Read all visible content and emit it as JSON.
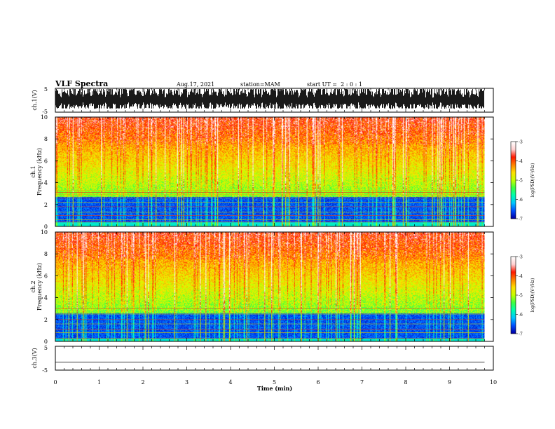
{
  "header": {
    "title": "VLF Spectra",
    "date": "Aug.17, 2021",
    "station": "station=MAM",
    "start_ut": "start UT =  2 : 0 : 1"
  },
  "chart_data": [
    {
      "type": "line",
      "name": "ch1-waveform",
      "ylabel": "ch.1(V)",
      "xlim": [
        0,
        10
      ],
      "ylim": [
        -5,
        5
      ],
      "yticks": [
        "5",
        "-5"
      ],
      "description_of_trace": "dense burst waveform filling about -3.5 to 4.7 V"
    },
    {
      "type": "heatmap",
      "name": "ch1-spectrogram",
      "ylabel": "ch.1\nFrequency (kHz)",
      "xlim": [
        0,
        10
      ],
      "ylim": [
        0,
        10
      ],
      "yticks": [
        "0",
        "2",
        "4",
        "6",
        "8",
        "10"
      ],
      "low_band_khz": [
        0.4,
        2.7
      ],
      "harmonic_lines_khz": [
        0.4,
        0.6,
        1.0,
        1.3,
        1.8,
        2.2,
        2.6,
        2.9,
        3.1,
        3.3
      ],
      "colorbar": {
        "label": "log(PSD)(V²/Hz)",
        "range": [
          -7,
          -3
        ],
        "ticks": [
          "-3",
          "-4",
          "-5",
          "-6",
          "-7"
        ]
      }
    },
    {
      "type": "heatmap",
      "name": "ch2-spectrogram",
      "ylabel": "ch.2\nFrequency (kHz)",
      "xlim": [
        0,
        10
      ],
      "ylim": [
        0,
        10
      ],
      "yticks": [
        "0",
        "2",
        "4",
        "6",
        "8",
        "10"
      ],
      "low_band_khz": [
        0.3,
        2.6
      ],
      "harmonic_lines_khz": [
        0.3,
        0.8,
        1.1,
        1.6,
        2.0,
        2.5,
        3.0
      ],
      "colorbar": {
        "label": "log(PSD)(V²/Hz)",
        "range": [
          -7,
          -3
        ],
        "ticks": [
          "-3",
          "-4",
          "-5",
          "-6",
          "-7"
        ]
      }
    },
    {
      "type": "line",
      "name": "ch3-waveform",
      "ylabel": "ch.3(V)",
      "xlim": [
        0,
        10
      ],
      "ylim": [
        -5,
        5
      ],
      "yticks": [
        "5",
        "-5"
      ],
      "x": [
        0,
        9.8
      ],
      "y": [
        -1.7,
        -1.7
      ]
    }
  ],
  "xaxis": {
    "label": "Time (min)",
    "ticks": [
      "0",
      "1",
      "2",
      "3",
      "4",
      "5",
      "6",
      "7",
      "8",
      "9",
      "10"
    ]
  },
  "colors": {
    "cmap": [
      "#000040",
      "#0000a8",
      "#0050ff",
      "#00c8ff",
      "#00ffb0",
      "#40ff40",
      "#c8ff00",
      "#ffe000",
      "#ff8000",
      "#ff1800",
      "#ffd0d0",
      "#ffffff"
    ]
  }
}
